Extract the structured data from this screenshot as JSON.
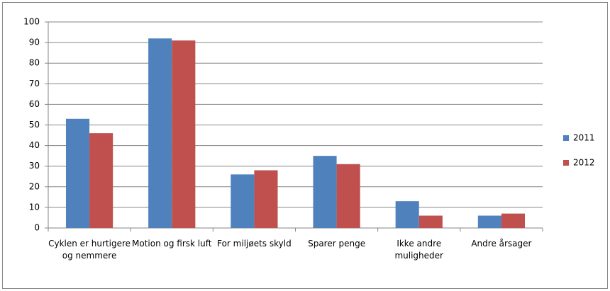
{
  "chart_data": {
    "type": "bar",
    "categories": [
      "Cyklen er hurtigere og nemmere",
      "Motion og firsk luft",
      "For miljøets skyld",
      "Sparer penge",
      "Ikke andre muligheder",
      "Andre årsager"
    ],
    "series": [
      {
        "name": "2011",
        "color": "#4f81bd",
        "values": [
          53,
          92,
          26,
          35,
          13,
          6
        ]
      },
      {
        "name": "2012",
        "color": "#c0504d",
        "values": [
          46,
          91,
          28,
          31,
          6,
          7
        ]
      }
    ],
    "ylim": [
      0,
      100
    ],
    "yticks": [
      0,
      10,
      20,
      30,
      40,
      50,
      60,
      70,
      80,
      90,
      100
    ],
    "grid": true,
    "legend": "right"
  }
}
